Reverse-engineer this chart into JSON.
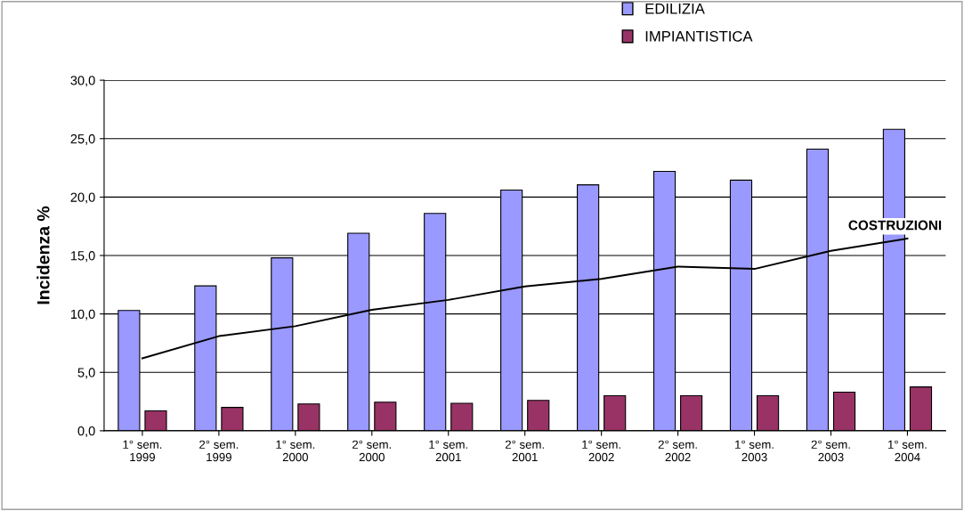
{
  "chart_data": {
    "type": "bar",
    "ylabel": "Incidenza %",
    "categories": [
      "1° sem.\n1999",
      "2° sem.\n1999",
      "1° sem.\n2000",
      "2° sem.\n2000",
      "1° sem.\n2001",
      "2° sem.\n2001",
      "1° sem.\n2002",
      "2° sem.\n2002",
      "1° sem.\n2003",
      "2° sem.\n2003",
      "1° sem.\n2004"
    ],
    "series": [
      {
        "name": "EDILIZIA",
        "color": "#9999ff",
        "values": [
          10.3,
          12.4,
          14.8,
          16.9,
          18.6,
          20.6,
          21.05,
          22.2,
          21.45,
          24.1,
          25.8
        ]
      },
      {
        "name": "IMPIANTISTICA",
        "color": "#993366",
        "values": [
          1.7,
          2.0,
          2.3,
          2.45,
          2.35,
          2.6,
          3.0,
          3.0,
          3.0,
          3.3,
          3.75
        ]
      },
      {
        "name": "COSTRUZIONI",
        "type": "line",
        "color": "#000000",
        "values": [
          6.2,
          8.1,
          8.95,
          10.35,
          11.2,
          12.35,
          13.0,
          14.05,
          13.85,
          15.4,
          16.45
        ]
      }
    ],
    "ylim": [
      0,
      30
    ],
    "yticks": [
      {
        "value": 0,
        "label": "0,0"
      },
      {
        "value": 5,
        "label": "5,0"
      },
      {
        "value": 10,
        "label": "10,0"
      },
      {
        "value": 15,
        "label": "15,0"
      },
      {
        "value": 20,
        "label": "20,0"
      },
      {
        "value": 25,
        "label": "25,0"
      },
      {
        "value": 30,
        "label": "30,0"
      }
    ],
    "grid": "y",
    "legend": "top",
    "marker": "none",
    "line_style": "solid"
  }
}
